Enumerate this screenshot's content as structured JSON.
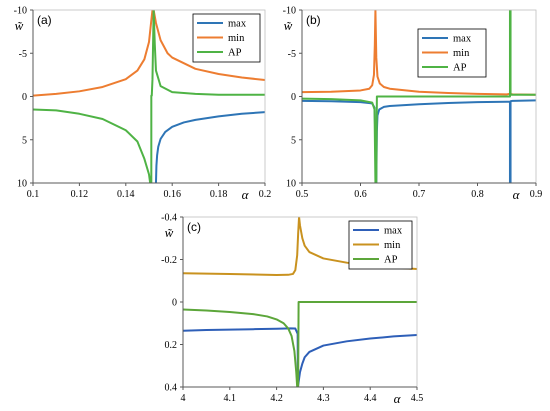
{
  "chart_data": [
    {
      "type": "line",
      "panel_label": "(a)",
      "ylabel": "w̃",
      "xlabel": "α",
      "xlim": [
        0.1,
        0.2
      ],
      "ylim": [
        -10,
        10
      ],
      "y_inverted": true,
      "x_ticks": [
        "0.1",
        "0.12",
        "0.14",
        "0.16",
        "0.18",
        "0.2"
      ],
      "y_ticks": [
        "-10",
        "-5",
        "0",
        "5",
        "10"
      ],
      "legend_position": "top-right",
      "colors": {
        "max": "#2e75b6",
        "min": "#ed7d31",
        "AP": "#4fb345"
      },
      "series": [
        {
          "name": "max",
          "x": [
            0.153,
            0.1532,
            0.1535,
            0.154,
            0.155,
            0.157,
            0.16,
            0.165,
            0.17,
            0.18,
            0.19,
            0.2
          ],
          "y": [
            10.0,
            8.0,
            6.8,
            5.8,
            4.9,
            4.1,
            3.5,
            3.0,
            2.7,
            2.3,
            2.0,
            1.8
          ]
        },
        {
          "name": "min",
          "x": [
            0.1,
            0.11,
            0.12,
            0.13,
            0.14,
            0.145,
            0.148,
            0.15,
            0.151,
            0.1515,
            0.152,
            0.153,
            0.155,
            0.158,
            0.16,
            0.17,
            0.18,
            0.19,
            0.2
          ],
          "y": [
            -0.1,
            -0.3,
            -0.6,
            -1.1,
            -2.0,
            -3.0,
            -4.3,
            -6.3,
            -8.8,
            -10.0,
            -10.0,
            -8.5,
            -6.5,
            -5.0,
            -4.5,
            -3.2,
            -2.6,
            -2.2,
            -1.9
          ]
        },
        {
          "name": "AP",
          "x": [
            0.1,
            0.11,
            0.12,
            0.13,
            0.14,
            0.145,
            0.148,
            0.15,
            0.1505,
            0.1508,
            0.151,
            0.151,
            0.1512,
            0.1515,
            0.152,
            0.1525,
            0.153,
            0.155,
            0.16,
            0.17,
            0.18,
            0.19,
            0.2
          ],
          "y": [
            1.5,
            1.6,
            2.0,
            2.6,
            3.9,
            5.2,
            7.2,
            9.0,
            10.0,
            10.0,
            10.0,
            -0.1,
            -0.1,
            -2.0,
            -10.0,
            -6.0,
            -3.0,
            -1.2,
            -0.5,
            -0.3,
            -0.2,
            -0.2,
            -0.2
          ]
        }
      ]
    },
    {
      "type": "line",
      "panel_label": "(b)",
      "ylabel": "w̃",
      "xlabel": "α",
      "xlim": [
        0.5,
        0.9
      ],
      "ylim": [
        -10,
        10
      ],
      "y_inverted": true,
      "x_ticks": [
        "0.5",
        "0.6",
        "0.7",
        "0.8",
        "0.9"
      ],
      "y_ticks": [
        "-10",
        "-5",
        "0",
        "5",
        "10"
      ],
      "legend_position": "top-right",
      "colors": {
        "max": "#2e75b6",
        "min": "#ed7d31",
        "AP": "#4fb345"
      },
      "series": [
        {
          "name": "max",
          "x": [
            0.5,
            0.55,
            0.6,
            0.62,
            0.624,
            0.6255,
            0.627,
            0.628,
            0.629,
            0.632,
            0.64,
            0.65,
            0.7,
            0.75,
            0.8,
            0.85,
            0.8555,
            0.8555,
            0.8565,
            0.8565,
            0.86,
            0.9
          ],
          "y": [
            0.5,
            0.55,
            0.65,
            0.8,
            1.3,
            5.0,
            10.0,
            4.0,
            2.2,
            1.5,
            1.2,
            1.1,
            0.9,
            0.75,
            0.65,
            0.6,
            0.6,
            10.0,
            10.0,
            0.55,
            0.5,
            0.45
          ]
        },
        {
          "name": "min",
          "x": [
            0.5,
            0.55,
            0.6,
            0.615,
            0.62,
            0.623,
            0.6245,
            0.6255,
            0.627,
            0.629,
            0.633,
            0.64,
            0.65,
            0.7,
            0.75,
            0.8,
            0.85,
            0.855,
            0.86,
            0.9
          ],
          "y": [
            -0.5,
            -0.55,
            -0.7,
            -0.9,
            -1.3,
            -2.5,
            -6.0,
            -10.0,
            -4.5,
            -2.3,
            -1.5,
            -1.1,
            -0.9,
            -0.55,
            -0.4,
            -0.3,
            -0.25,
            -0.3,
            -0.25,
            -0.2
          ]
        },
        {
          "name": "AP",
          "x": [
            0.5,
            0.55,
            0.6,
            0.62,
            0.624,
            0.6255,
            0.6255,
            0.627,
            0.628,
            0.63,
            0.7,
            0.8,
            0.855,
            0.8555,
            0.8555,
            0.8565,
            0.8565,
            0.86,
            0.9
          ],
          "y": [
            0.25,
            0.3,
            0.45,
            0.7,
            1.5,
            10.0,
            10.0,
            10.0,
            0.0,
            0.0,
            0.0,
            0.0,
            0.0,
            0.0,
            -10.0,
            -10.0,
            -0.2,
            -0.2,
            -0.2
          ]
        }
      ]
    },
    {
      "type": "line",
      "panel_label": "(c)",
      "ylabel": "w̃",
      "xlabel": "α",
      "xlim": [
        4.0,
        4.5
      ],
      "ylim": [
        -0.4,
        0.4
      ],
      "y_inverted": true,
      "x_ticks": [
        "4",
        "4.1",
        "4.2",
        "4.3",
        "4.4",
        "4.5"
      ],
      "y_ticks": [
        "-0.4",
        "-0.2",
        "0",
        "0.2",
        "0.4"
      ],
      "legend_position": "top-right",
      "colors": {
        "max": "#2e5fb8",
        "min": "#c9921f",
        "AP": "#5ca63a"
      },
      "series": [
        {
          "name": "max",
          "x": [
            4.0,
            4.05,
            4.1,
            4.15,
            4.2,
            4.23,
            4.24,
            4.245,
            4.2455,
            4.25,
            4.255,
            4.26,
            4.27,
            4.3,
            4.35,
            4.4,
            4.45,
            4.5
          ],
          "y": [
            0.135,
            0.132,
            0.13,
            0.128,
            0.126,
            0.124,
            0.125,
            0.15,
            0.4,
            0.33,
            0.29,
            0.26,
            0.235,
            0.205,
            0.185,
            0.172,
            0.162,
            0.155
          ]
        },
        {
          "name": "min",
          "x": [
            4.0,
            4.1,
            4.2,
            4.225,
            4.235,
            4.24,
            4.244,
            4.246,
            4.248,
            4.25,
            4.255,
            4.26,
            4.27,
            4.3,
            4.35,
            4.4,
            4.45,
            4.5
          ],
          "y": [
            -0.135,
            -0.132,
            -0.127,
            -0.128,
            -0.132,
            -0.15,
            -0.22,
            -0.32,
            -0.4,
            -0.36,
            -0.3,
            -0.265,
            -0.235,
            -0.205,
            -0.185,
            -0.172,
            -0.162,
            -0.155
          ]
        },
        {
          "name": "AP",
          "x": [
            4.0,
            4.05,
            4.1,
            4.15,
            4.18,
            4.2,
            4.215,
            4.225,
            4.232,
            4.238,
            4.242,
            4.244,
            4.246,
            4.247,
            4.248,
            4.25,
            4.3,
            4.4,
            4.5
          ],
          "y": [
            0.035,
            0.04,
            0.047,
            0.057,
            0.068,
            0.082,
            0.1,
            0.125,
            0.16,
            0.23,
            0.33,
            0.4,
            0.4,
            0.0,
            0.0,
            0.0,
            0.0,
            0.0,
            0.0
          ]
        }
      ]
    }
  ]
}
